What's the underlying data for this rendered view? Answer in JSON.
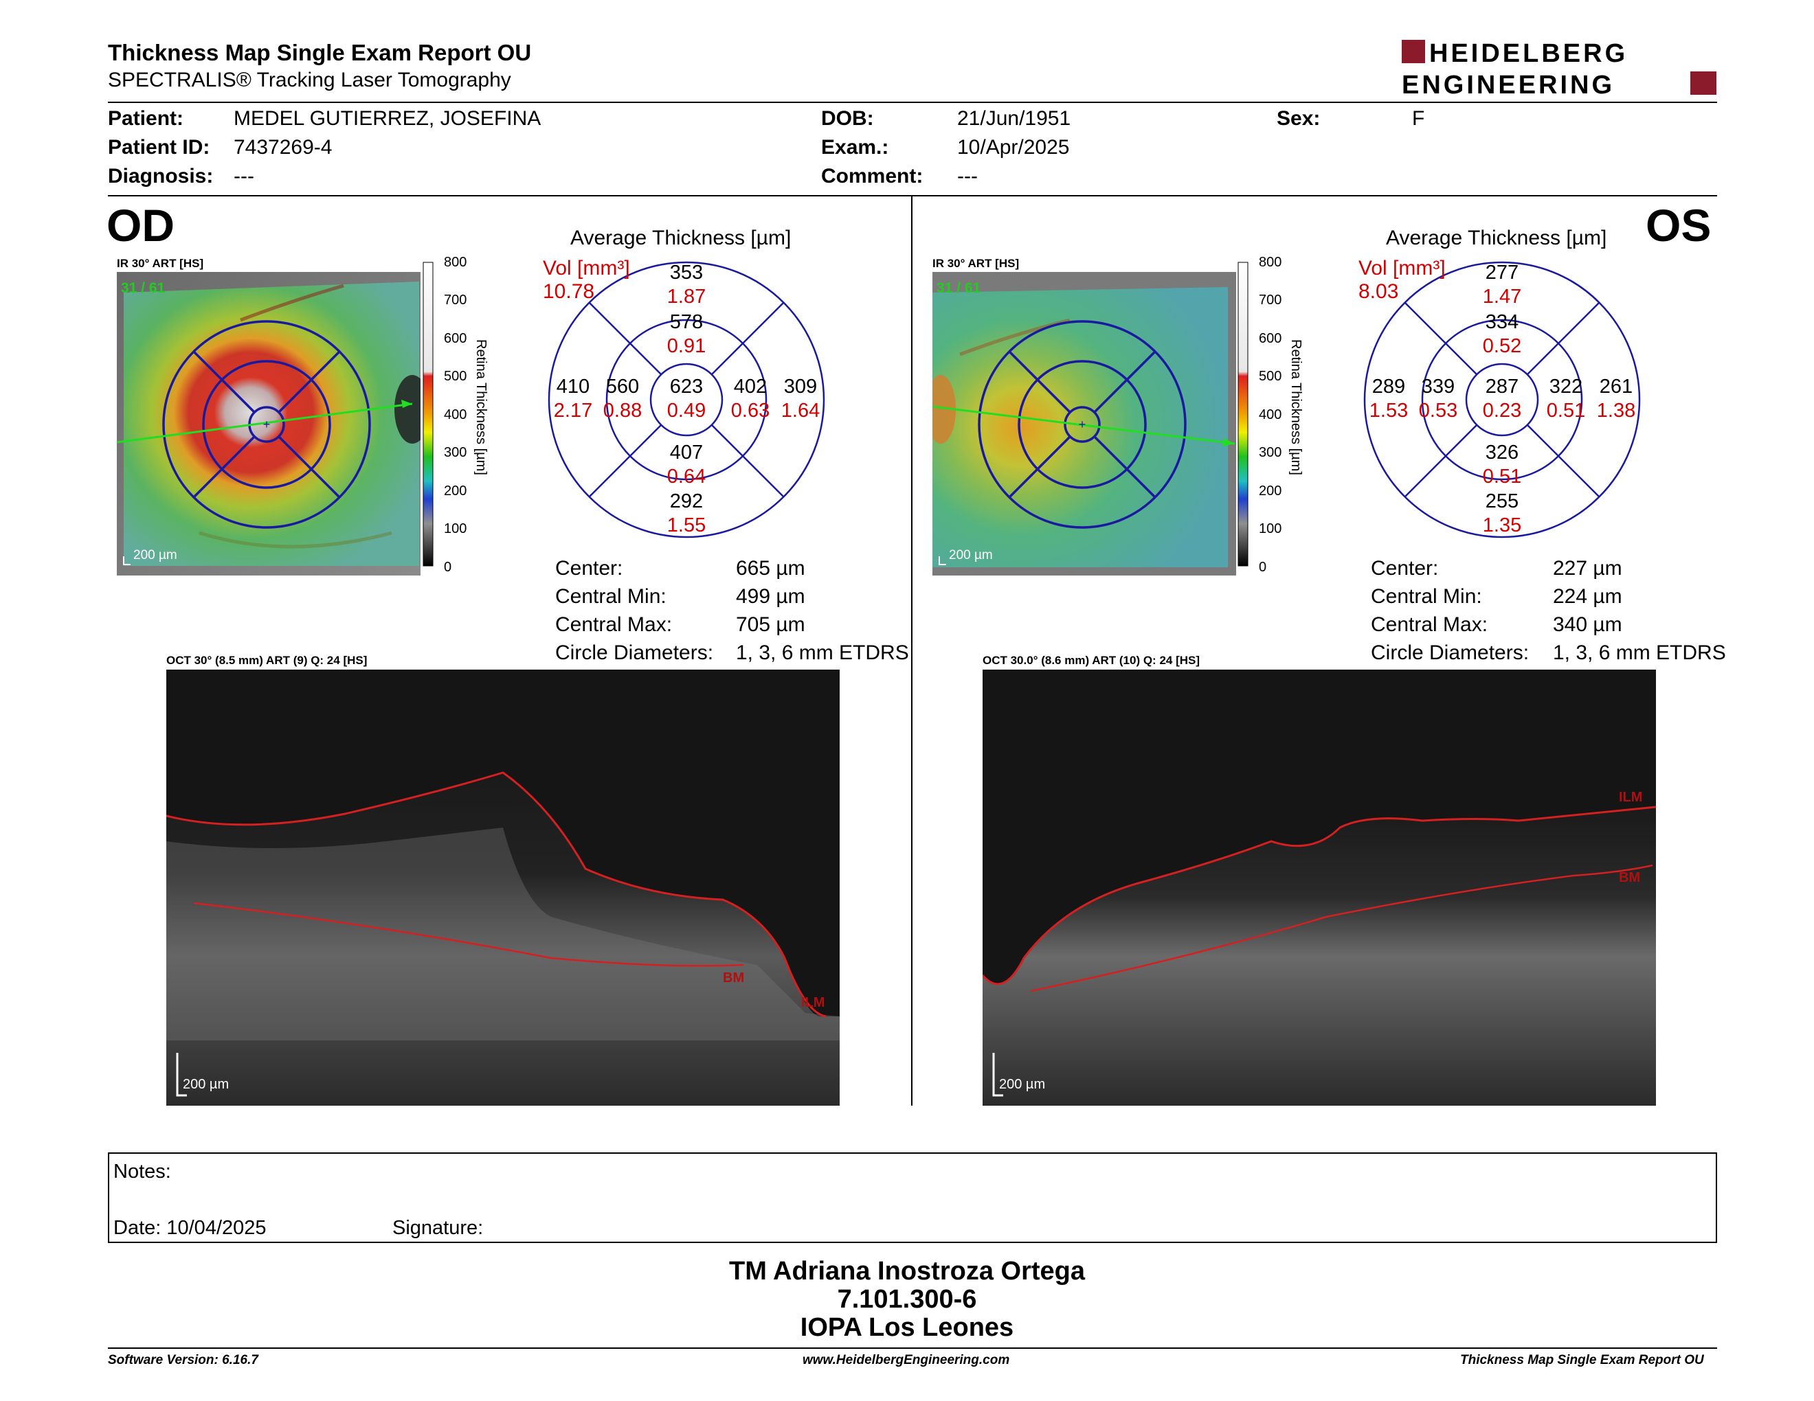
{
  "report": {
    "title": "Thickness Map Single Exam Report OU",
    "subtitle": "SPECTRALIS® Tracking Laser Tomography"
  },
  "brand": {
    "line1": "HEIDELBERG",
    "line2": "ENGINEERING",
    "accent": "#8b1a2b"
  },
  "patient": {
    "name_label": "Patient:",
    "name": "MEDEL GUTIERREZ, JOSEFINA",
    "id_label": "Patient ID:",
    "id": "7437269-4",
    "diagnosis_label": "Diagnosis:",
    "diagnosis": "---",
    "dob_label": "DOB:",
    "dob": "21/Jun/1951",
    "exam_label": "Exam.:",
    "exam": "10/Apr/2025",
    "comment_label": "Comment:",
    "comment": "---",
    "sex_label": "Sex:",
    "sex": "F"
  },
  "od": {
    "eye": "OD",
    "ir_caption": "IR 30° ART [HS]",
    "frames": "31 / 61",
    "scale": "200 µm",
    "color_scale": {
      "ticks": [
        "800",
        "700",
        "600",
        "500",
        "400",
        "300",
        "200",
        "100",
        "0"
      ],
      "label": "Retina Thickness [µm]"
    },
    "avg_title": "Average Thickness [µm]",
    "vol_label": "Vol [mm³]",
    "vol_total": "10.78",
    "sectors": {
      "outer_top": {
        "t": "353",
        "v": "1.87"
      },
      "inner_top": {
        "t": "578",
        "v": "0.91"
      },
      "center": {
        "t": "623",
        "v": "0.49"
      },
      "inner_left": {
        "t": "560",
        "v": "0.88"
      },
      "inner_right": {
        "t": "402",
        "v": "0.63"
      },
      "outer_left": {
        "t": "410",
        "v": "2.17"
      },
      "outer_right": {
        "t": "309",
        "v": "1.64"
      },
      "inner_bottom": {
        "t": "407",
        "v": "0.64"
      },
      "outer_bottom": {
        "t": "292",
        "v": "1.55"
      }
    },
    "stats": {
      "center_label": "Center:",
      "center": "665 µm",
      "min_label": "Central Min:",
      "min": "499 µm",
      "max_label": "Central Max:",
      "max": "705 µm",
      "diam_label": "Circle Diameters:",
      "diam": "1, 3, 6 mm ETDRS"
    },
    "oct_caption": "OCT 30° (8.5 mm) ART (9) Q: 24 [HS]",
    "oct_scale": "200 µm",
    "bm": "BM",
    "ilm": "ILM"
  },
  "os": {
    "eye": "OS",
    "ir_caption": "IR 30° ART [HS]",
    "frames": "31 / 61",
    "scale": "200 µm",
    "color_scale": {
      "ticks": [
        "800",
        "700",
        "600",
        "500",
        "400",
        "300",
        "200",
        "100",
        "0"
      ],
      "label": "Retina Thickness [µm]"
    },
    "avg_title": "Average Thickness [µm]",
    "vol_label": "Vol [mm³]",
    "vol_total": "8.03",
    "sectors": {
      "outer_top": {
        "t": "277",
        "v": "1.47"
      },
      "inner_top": {
        "t": "334",
        "v": "0.52"
      },
      "center": {
        "t": "287",
        "v": "0.23"
      },
      "inner_left": {
        "t": "339",
        "v": "0.53"
      },
      "inner_right": {
        "t": "322",
        "v": "0.51"
      },
      "outer_left": {
        "t": "289",
        "v": "1.53"
      },
      "outer_right": {
        "t": "261",
        "v": "1.38"
      },
      "inner_bottom": {
        "t": "326",
        "v": "0.51"
      },
      "outer_bottom": {
        "t": "255",
        "v": "1.35"
      }
    },
    "stats": {
      "center_label": "Center:",
      "center": "227 µm",
      "min_label": "Central Min:",
      "min": "224 µm",
      "max_label": "Central Max:",
      "max": "340 µm",
      "diam_label": "Circle Diameters:",
      "diam": "1, 3, 6 mm ETDRS"
    },
    "oct_caption": "OCT 30.0° (8.6 mm) ART (10) Q: 24 [HS]",
    "oct_scale": "200 µm",
    "bm": "BM",
    "ilm": "ILM"
  },
  "notes": {
    "label": "Notes:",
    "date_label": "Date: 10/04/2025",
    "signature_label": "Signature:"
  },
  "signature": {
    "name": "TM Adriana Inostroza Ortega",
    "rut": "7.101.300-6",
    "place": "IOPA Los Leones"
  },
  "footer": {
    "version": "Software Version: 6.16.7",
    "url": "www.HeidelbergEngineering.com",
    "report": "Thickness Map Single Exam Report OU"
  },
  "colors": {
    "grid_blue": "#1a1aa0",
    "vol_red": "#d40000",
    "frame_green": "#22cc22",
    "layer_red": "#d42020"
  }
}
